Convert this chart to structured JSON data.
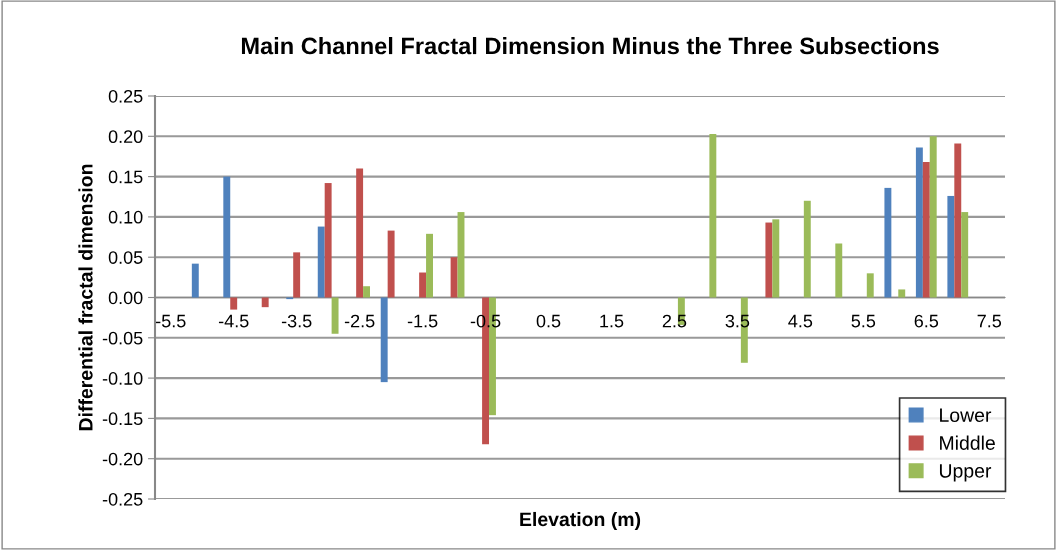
{
  "chart_data": {
    "type": "bar",
    "title": "Main Channel Fractal Dimension Minus the Three Subsections",
    "xlabel": "Elevation (m)",
    "ylabel": "Differential fractal dimension",
    "categories": [
      "-5.5",
      null,
      "-4.5",
      null,
      "-3.5",
      null,
      "-2.5",
      null,
      "-1.5",
      null,
      "-0.5",
      null,
      "0.5",
      null,
      "1.5",
      null,
      "2.5",
      null,
      "3.5",
      null,
      "4.5",
      null,
      "5.5",
      null,
      "6.5",
      null,
      "7.5"
    ],
    "series": [
      {
        "name": "Lower",
        "color": "#4f81bd",
        "values": [
          null,
          0.042,
          0.15,
          null,
          -0.002,
          0.088,
          null,
          -0.105,
          null,
          null,
          null,
          null,
          null,
          null,
          null,
          null,
          null,
          null,
          null,
          null,
          null,
          null,
          null,
          0.136,
          0.186,
          0.126,
          null
        ]
      },
      {
        "name": "Middle",
        "color": "#c0504d",
        "values": [
          null,
          null,
          -0.015,
          -0.012,
          0.056,
          0.142,
          0.16,
          0.083,
          0.031,
          0.05,
          -0.182,
          null,
          null,
          null,
          null,
          null,
          null,
          null,
          null,
          0.093,
          null,
          null,
          null,
          null,
          0.168,
          0.191,
          null
        ]
      },
      {
        "name": "Upper",
        "color": "#9bbb59",
        "values": [
          null,
          null,
          null,
          null,
          null,
          -0.045,
          0.014,
          null,
          0.079,
          0.106,
          -0.146,
          null,
          null,
          null,
          null,
          null,
          -0.034,
          0.203,
          -0.081,
          0.097,
          0.12,
          0.067,
          0.03,
          0.01,
          0.2,
          0.106,
          null
        ]
      }
    ],
    "ylim": [
      -0.25,
      0.25
    ],
    "yticks": [
      {
        "value": -0.25,
        "label": "-0.25"
      },
      {
        "value": -0.2,
        "label": "-0.20"
      },
      {
        "value": -0.15,
        "label": "-0.15"
      },
      {
        "value": -0.1,
        "label": "-0.10"
      },
      {
        "value": -0.05,
        "label": "-0.05"
      },
      {
        "value": 0,
        "label": "0.00"
      },
      {
        "value": 0.05,
        "label": "0.05"
      },
      {
        "value": 0.1,
        "label": "0.10"
      },
      {
        "value": 0.15,
        "label": "0.15"
      },
      {
        "value": 0.2,
        "label": "0.20"
      },
      {
        "value": 0.25,
        "label": "0.25"
      }
    ],
    "grid": "y",
    "legend": "bottom right"
  }
}
